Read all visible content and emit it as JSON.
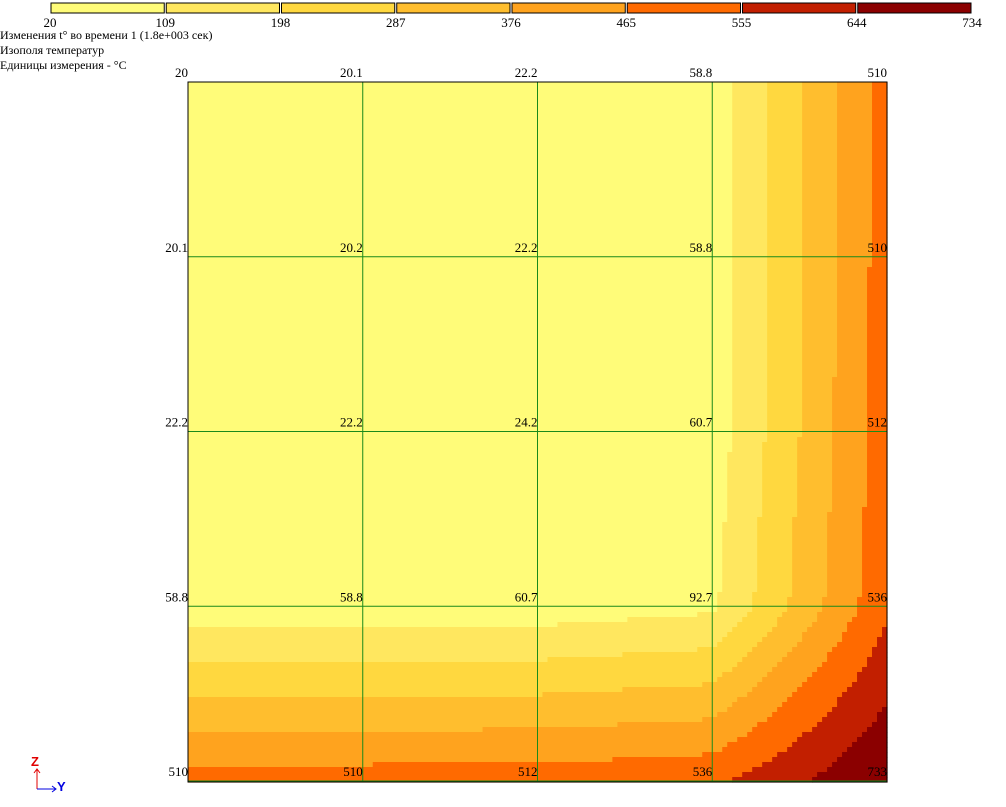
{
  "header": {
    "line1": "Изменения t° во времени 1 (1.8e+003 сек)",
    "line2": "Изополя температур",
    "line3": "Единицы измерения - °C"
  },
  "legend": {
    "ticks": [
      "20",
      "109",
      "198",
      "287",
      "376",
      "465",
      "555",
      "644",
      "734"
    ],
    "colors": [
      "#FFFC79",
      "#FFE75F",
      "#FFD83F",
      "#FFBE2E",
      "#FFA31E",
      "#FF6A00",
      "#C21F00",
      "#8B0000"
    ]
  },
  "grid": {
    "rows": [
      [
        "20",
        "20.1",
        "22.2",
        "58.8",
        "510"
      ],
      [
        "20.1",
        "20.2",
        "22.2",
        "58.8",
        "510"
      ],
      [
        "22.2",
        "22.2",
        "24.2",
        "60.7",
        "512"
      ],
      [
        "58.8",
        "58.8",
        "60.7",
        "92.7",
        "536"
      ],
      [
        "510",
        "510",
        "512",
        "536",
        "733"
      ]
    ],
    "line_color": "#1A8A1A"
  },
  "axes": {
    "vertical_label": "Z",
    "horizontal_label": "Y",
    "vertical_color": "#E00000",
    "horizontal_color": "#0000E0"
  }
}
